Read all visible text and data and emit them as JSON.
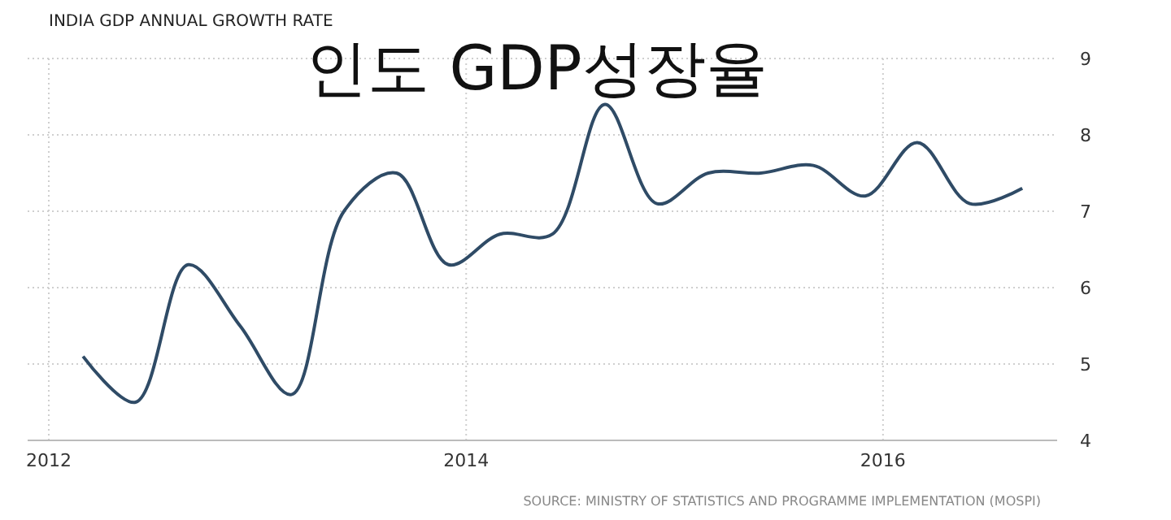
{
  "chart_data": {
    "type": "line",
    "title": "INDIA GDP ANNUAL GROWTH RATE",
    "subtitle": "인도 GDP성장율",
    "x": [
      "2012-03",
      "2012-06",
      "2012-09",
      "2012-12",
      "2013-03",
      "2013-06",
      "2013-09",
      "2013-12",
      "2014-03",
      "2014-06",
      "2014-09",
      "2014-12",
      "2015-03",
      "2015-06",
      "2015-09",
      "2015-12",
      "2016-03",
      "2016-06",
      "2016-09"
    ],
    "series": [
      {
        "color": "#2f4b66",
        "values": [
          5.1,
          4.5,
          6.3,
          5.5,
          4.6,
          7.0,
          7.5,
          6.3,
          6.7,
          6.7,
          8.4,
          7.1,
          7.5,
          7.5,
          7.6,
          7.2,
          7.9,
          7.1,
          7.3
        ]
      }
    ],
    "xlim": [
      "2011-11-25",
      "2016-11-01"
    ],
    "xticks": [
      "2012",
      "2014",
      "2016"
    ],
    "ylim": [
      4,
      9
    ],
    "yticks": [
      4,
      5,
      6,
      7,
      8,
      9
    ],
    "grid": true,
    "annotations": [
      "SOURCE: MINISTRY OF STATISTICS AND PROGRAMME IMPLEMENTATION (MOSPI)"
    ]
  }
}
